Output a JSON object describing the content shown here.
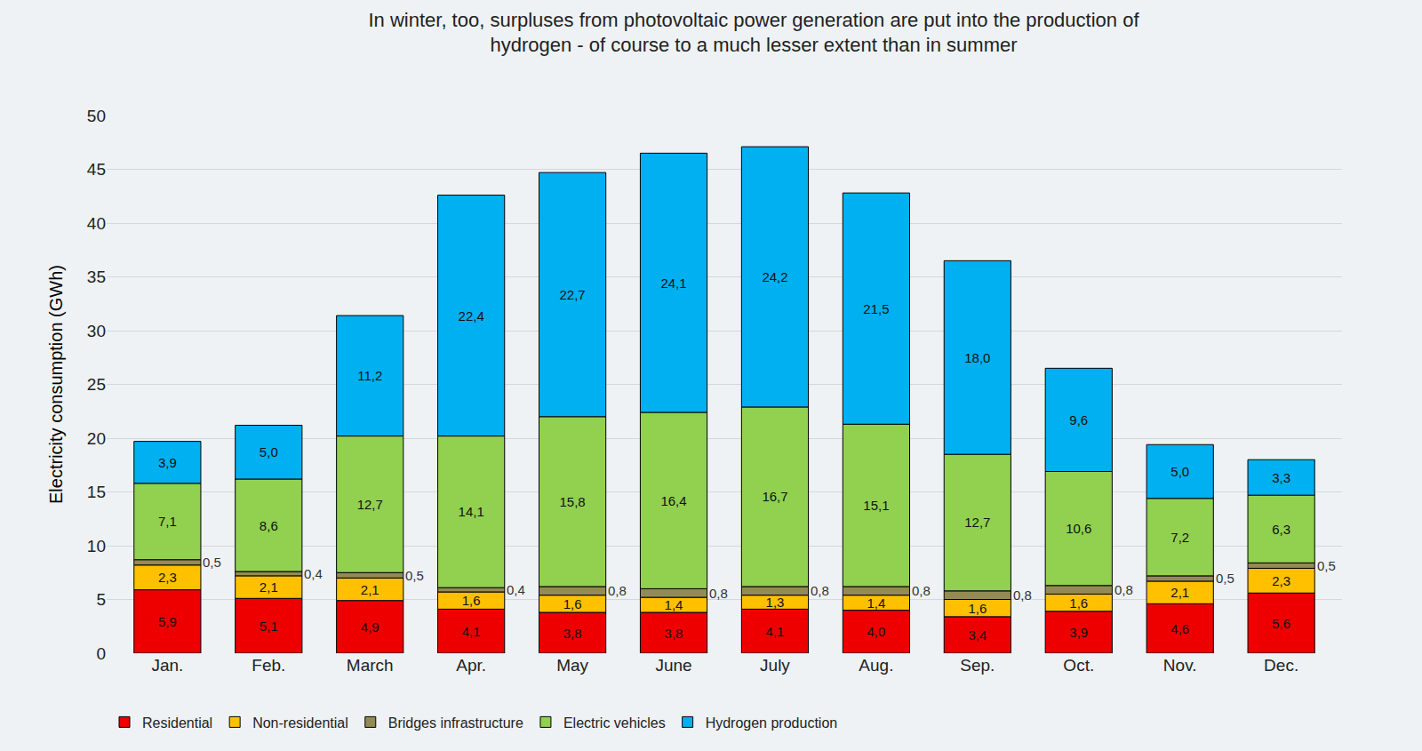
{
  "chart_data": {
    "type": "bar",
    "title": "In winter, too, surpluses from photovoltaic power generation are put into the production of hydrogen - of course to a much lesser extent than in summer",
    "y_label": "Electricity consumption (GWh)",
    "categories": [
      "Jan.",
      "Feb.",
      "March",
      "Apr.",
      "May",
      "June",
      "July",
      "Aug.",
      "Sep.",
      "Oct.",
      "Nov.",
      "Dec."
    ],
    "stacked": true,
    "data_labels": true,
    "grid": true,
    "legend": "bottom",
    "ylim": [
      0,
      50
    ],
    "yticks": [
      0,
      5,
      10,
      15,
      20,
      25,
      30,
      35,
      40,
      45,
      50
    ],
    "series": [
      {
        "name": "Residential",
        "color": "#ee0000",
        "values": [
          5.9,
          5.1,
          4.9,
          4.1,
          3.8,
          3.8,
          4.1,
          4.0,
          3.4,
          3.9,
          4.6,
          5.6
        ],
        "value_labels": [
          "5,9",
          "5,1",
          "4,9",
          "4,1",
          "3,8",
          "3,8",
          "4,1",
          "4,0",
          "3,4",
          "3,9",
          "4,6",
          "5,6"
        ]
      },
      {
        "name": "Non-residential",
        "color": "#ffc000",
        "values": [
          2.3,
          2.1,
          2.1,
          1.6,
          1.6,
          1.4,
          1.3,
          1.4,
          1.6,
          1.6,
          2.1,
          2.3
        ],
        "value_labels": [
          "2,3",
          "2,1",
          "2,1",
          "1,6",
          "1,6",
          "1,4",
          "1,3",
          "1,4",
          "1,6",
          "1,6",
          "2,1",
          "2,3"
        ]
      },
      {
        "name": "Bridges infrastructure",
        "color": "#948a54",
        "values": [
          0.5,
          0.4,
          0.5,
          0.4,
          0.8,
          0.8,
          0.8,
          0.8,
          0.8,
          0.8,
          0.5,
          0.5
        ],
        "value_labels": [
          "0,5",
          "0,4",
          "0,5",
          "0,4",
          "0,8",
          "0,8",
          "0,8",
          "0,8",
          "0,8",
          "0,8",
          "0,5",
          "0,5"
        ]
      },
      {
        "name": "Electric vehicles",
        "color": "#92d050",
        "values": [
          7.1,
          8.6,
          12.7,
          14.1,
          15.8,
          16.4,
          16.7,
          15.1,
          12.7,
          10.6,
          7.2,
          6.3
        ],
        "value_labels": [
          "7,1",
          "8,6",
          "12,7",
          "14,1",
          "15,8",
          "16,4",
          "16,7",
          "15,1",
          "12,7",
          "10,6",
          "7,2",
          "6,3"
        ]
      },
      {
        "name": "Hydrogen production",
        "color": "#00b0f0",
        "values": [
          3.9,
          5.0,
          11.2,
          22.4,
          22.7,
          24.1,
          24.2,
          21.5,
          18.0,
          9.6,
          5.0,
          3.3
        ],
        "value_labels": [
          "3,9",
          "5,0",
          "11,2",
          "22,4",
          "22,7",
          "24,1",
          "24,2",
          "21,5",
          "18,0",
          "9,6",
          "5,0",
          "3,3"
        ]
      }
    ]
  }
}
